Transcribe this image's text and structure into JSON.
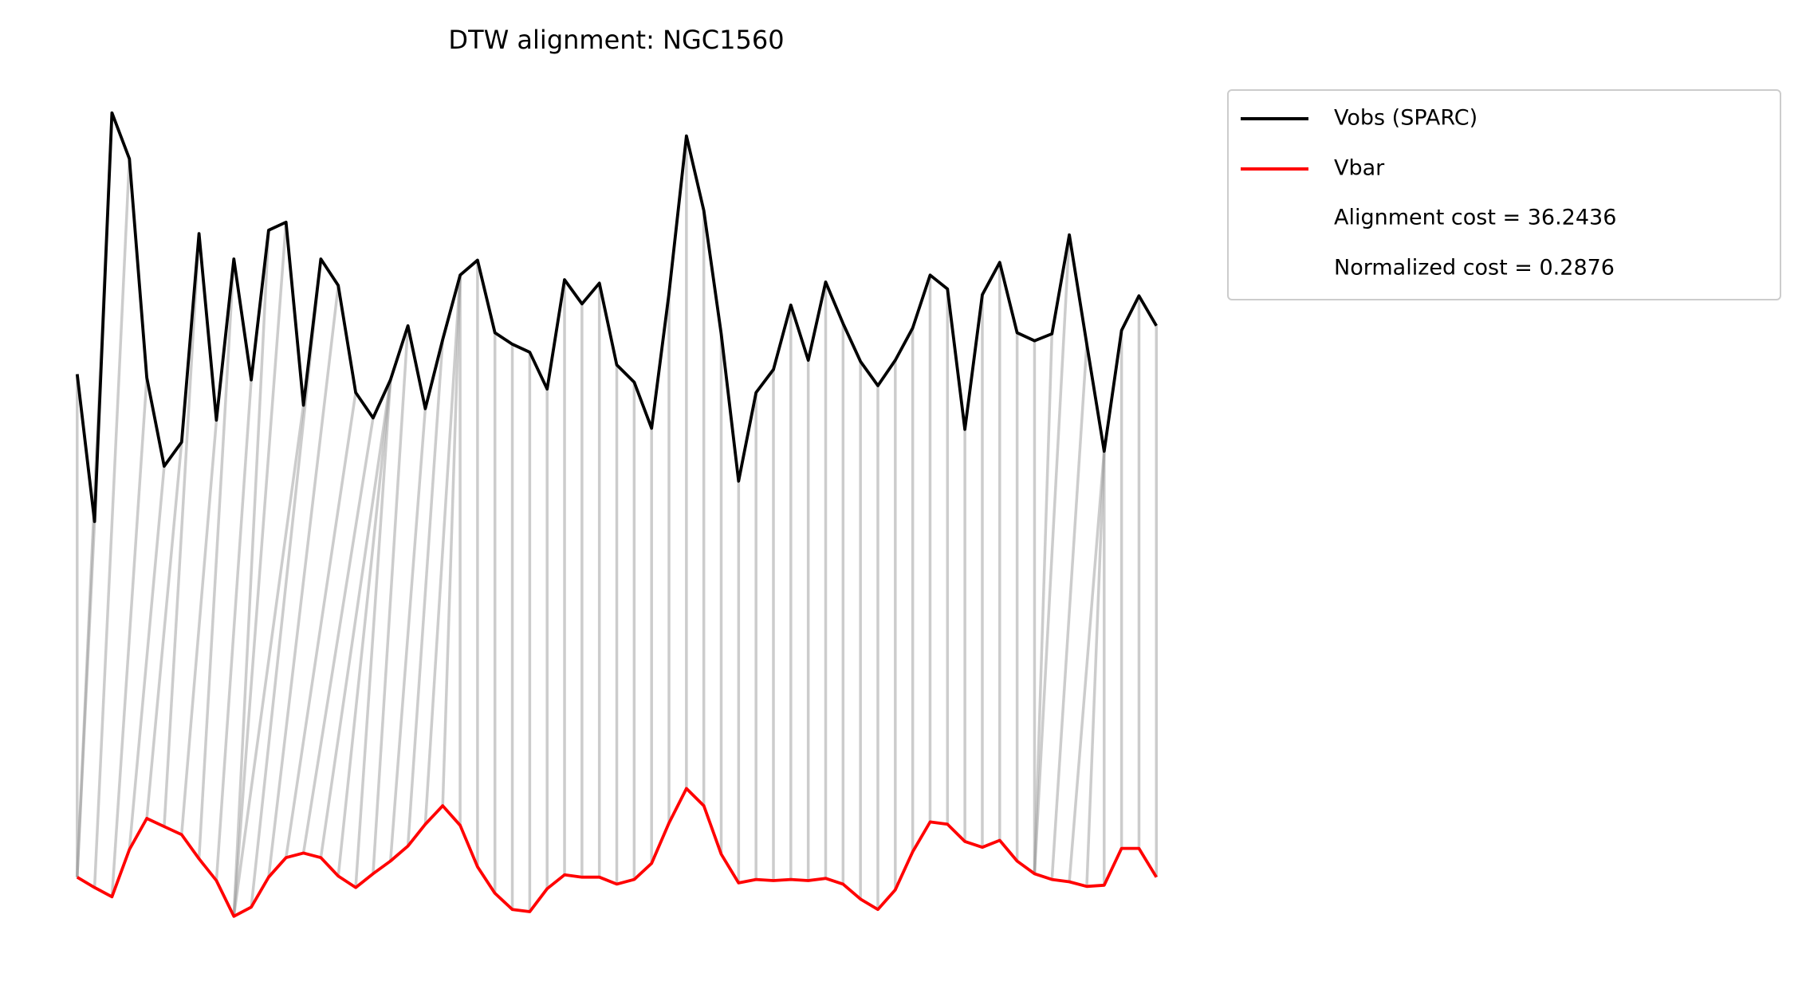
{
  "chart_data": {
    "type": "line",
    "title": "DTW alignment: NGC1560",
    "series": [
      {
        "name": "Vobs (SPARC)",
        "color": "#000000",
        "values": [
          525,
          397,
          752,
          712,
          522,
          445,
          466,
          647,
          485,
          625,
          520,
          650,
          657,
          498,
          625,
          602,
          509,
          487,
          520,
          567,
          495,
          555,
          611,
          624,
          561,
          551,
          544,
          512,
          607,
          586,
          604,
          533,
          518,
          478,
          595,
          732,
          667,
          560,
          432,
          509,
          529,
          585,
          537,
          605,
          569,
          536,
          515,
          537,
          565,
          611,
          599,
          477,
          594,
          622,
          561,
          554,
          560,
          646,
          551,
          458,
          563,
          593,
          567
        ]
      },
      {
        "name": "Vbar",
        "color": "#ff0000",
        "values": [
          88,
          79,
          71,
          112,
          139,
          132,
          125,
          104,
          85,
          54,
          62,
          88,
          105,
          109,
          105,
          89,
          79,
          91,
          102,
          115,
          134,
          150,
          133,
          97,
          74,
          60,
          58,
          78,
          90,
          88,
          88,
          82,
          86,
          100,
          135,
          165,
          150,
          108,
          83,
          86,
          85,
          86,
          85,
          87,
          82,
          69,
          60,
          77,
          110,
          136,
          134,
          119,
          114,
          120,
          102,
          91,
          86,
          84,
          80,
          81,
          113,
          113,
          88
        ]
      }
    ],
    "alignment": [
      [
        0,
        0
      ],
      [
        1,
        0
      ],
      [
        2,
        0
      ],
      [
        3,
        1
      ],
      [
        4,
        2
      ],
      [
        5,
        3
      ],
      [
        6,
        4
      ],
      [
        7,
        5
      ],
      [
        8,
        6
      ],
      [
        9,
        7
      ],
      [
        10,
        8
      ],
      [
        11,
        9
      ],
      [
        12,
        9
      ],
      [
        13,
        9
      ],
      [
        14,
        10
      ],
      [
        15,
        11
      ],
      [
        16,
        12
      ],
      [
        17,
        13
      ],
      [
        18,
        14
      ],
      [
        18,
        15
      ],
      [
        18,
        16
      ],
      [
        19,
        17
      ],
      [
        20,
        18
      ],
      [
        21,
        19
      ],
      [
        22,
        20
      ],
      [
        22,
        21
      ],
      [
        22,
        22
      ],
      [
        23,
        23
      ],
      [
        24,
        24
      ],
      [
        25,
        25
      ],
      [
        26,
        26
      ],
      [
        27,
        27
      ],
      [
        28,
        28
      ],
      [
        29,
        29
      ],
      [
        30,
        30
      ],
      [
        31,
        31
      ],
      [
        32,
        32
      ],
      [
        33,
        33
      ],
      [
        34,
        34
      ],
      [
        35,
        35
      ],
      [
        36,
        36
      ],
      [
        37,
        37
      ],
      [
        38,
        38
      ],
      [
        39,
        39
      ],
      [
        40,
        40
      ],
      [
        41,
        41
      ],
      [
        42,
        42
      ],
      [
        43,
        43
      ],
      [
        44,
        44
      ],
      [
        45,
        45
      ],
      [
        46,
        46
      ],
      [
        47,
        47
      ],
      [
        48,
        48
      ],
      [
        49,
        49
      ],
      [
        50,
        50
      ],
      [
        51,
        51
      ],
      [
        52,
        52
      ],
      [
        53,
        53
      ],
      [
        54,
        54
      ],
      [
        55,
        55
      ],
      [
        56,
        55
      ],
      [
        57,
        55
      ],
      [
        58,
        56
      ],
      [
        59,
        57
      ],
      [
        59,
        58
      ],
      [
        59,
        59
      ],
      [
        60,
        60
      ],
      [
        61,
        61
      ],
      [
        62,
        62
      ]
    ],
    "legend_notes": [
      "Alignment cost = 36.2436",
      "Normalized cost = 0.2876"
    ],
    "xlim": [
      0,
      62
    ],
    "ylim": [
      0,
      850
    ]
  }
}
